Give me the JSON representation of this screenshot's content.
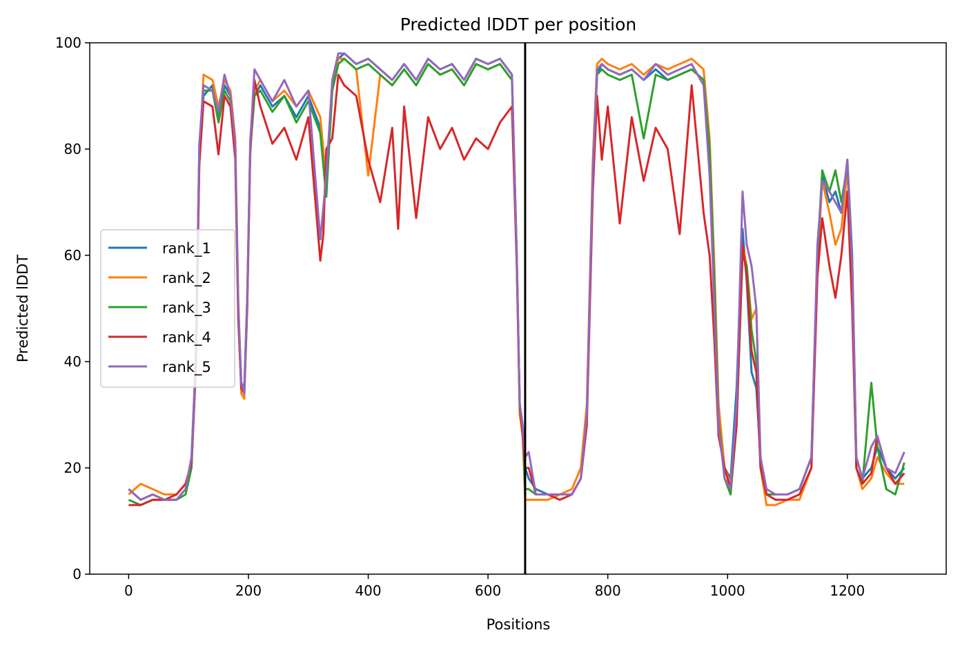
{
  "chart_data": {
    "type": "line",
    "title": "Predicted lDDT per position",
    "xlabel": "Positions",
    "ylabel": "Predicted lDDT",
    "xlim": [
      -65,
      1365
    ],
    "ylim": [
      0,
      100
    ],
    "xticks": [
      0,
      200,
      400,
      600,
      800,
      1000,
      1200
    ],
    "yticks": [
      0,
      20,
      40,
      60,
      80,
      100
    ],
    "grid": false,
    "legend_placement": "center-left",
    "vertical_line": {
      "x": 662,
      "color": "#000000"
    },
    "series": [
      {
        "name": "rank_1",
        "color": "#1f77b4",
        "x": [
          0,
          20,
          40,
          60,
          80,
          95,
          105,
          112,
          118,
          125,
          140,
          150,
          160,
          170,
          178,
          183,
          188,
          193,
          198,
          203,
          210,
          220,
          240,
          260,
          280,
          300,
          320,
          330,
          340,
          350,
          360,
          380,
          400,
          420,
          440,
          460,
          480,
          500,
          520,
          540,
          560,
          580,
          600,
          620,
          640,
          648,
          653,
          658,
          662,
          668,
          680,
          700,
          720,
          740,
          755,
          765,
          775,
          782,
          790,
          800,
          820,
          840,
          860,
          880,
          900,
          920,
          940,
          960,
          970,
          978,
          985,
          995,
          1005,
          1015,
          1025,
          1032,
          1040,
          1048,
          1055,
          1065,
          1080,
          1100,
          1120,
          1140,
          1150,
          1158,
          1170,
          1180,
          1190,
          1200,
          1208,
          1215,
          1225,
          1240,
          1250,
          1265,
          1280,
          1295
        ],
        "values": [
          16,
          14,
          15,
          14,
          14,
          16,
          22,
          40,
          80,
          90,
          92,
          86,
          92,
          90,
          80,
          50,
          36,
          35,
          52,
          80,
          90,
          92,
          88,
          90,
          86,
          90,
          84,
          72,
          92,
          97,
          98,
          96,
          97,
          95,
          93,
          96,
          93,
          97,
          95,
          96,
          93,
          97,
          96,
          97,
          94,
          60,
          32,
          28,
          20,
          18,
          16,
          15,
          15,
          15,
          18,
          30,
          75,
          94,
          96,
          95,
          94,
          95,
          93,
          95,
          93,
          94,
          95,
          93,
          80,
          55,
          30,
          20,
          18,
          35,
          65,
          55,
          38,
          35,
          22,
          15,
          15,
          15,
          16,
          22,
          60,
          75,
          70,
          72,
          68,
          78,
          60,
          22,
          18,
          20,
          24,
          20,
          18,
          20
        ]
      },
      {
        "name": "rank_2",
        "color": "#ff7f0e",
        "x": [
          0,
          20,
          40,
          60,
          80,
          95,
          105,
          112,
          118,
          125,
          140,
          150,
          160,
          170,
          178,
          183,
          188,
          193,
          198,
          203,
          210,
          220,
          240,
          260,
          280,
          300,
          320,
          330,
          340,
          350,
          360,
          380,
          400,
          420,
          440,
          460,
          480,
          500,
          520,
          540,
          560,
          580,
          600,
          620,
          640,
          648,
          653,
          658,
          662,
          668,
          680,
          700,
          720,
          740,
          755,
          765,
          775,
          782,
          790,
          800,
          820,
          840,
          860,
          880,
          900,
          920,
          940,
          960,
          970,
          978,
          985,
          995,
          1005,
          1015,
          1025,
          1032,
          1040,
          1048,
          1055,
          1065,
          1080,
          1100,
          1120,
          1140,
          1150,
          1158,
          1170,
          1180,
          1190,
          1200,
          1208,
          1215,
          1225,
          1240,
          1250,
          1265,
          1280,
          1295
        ],
        "values": [
          15,
          17,
          16,
          15,
          15,
          17,
          21,
          38,
          78,
          94,
          93,
          88,
          93,
          91,
          82,
          52,
          34,
          33,
          50,
          82,
          91,
          93,
          89,
          91,
          88,
          91,
          86,
          74,
          93,
          97,
          97,
          95,
          75,
          94,
          92,
          95,
          92,
          96,
          94,
          95,
          92,
          96,
          95,
          96,
          93,
          58,
          30,
          26,
          14,
          14,
          14,
          14,
          15,
          16,
          20,
          32,
          78,
          96,
          97,
          96,
          95,
          96,
          94,
          96,
          95,
          96,
          97,
          95,
          82,
          58,
          32,
          20,
          17,
          30,
          62,
          58,
          48,
          50,
          20,
          13,
          13,
          14,
          14,
          20,
          58,
          74,
          68,
          62,
          65,
          76,
          58,
          20,
          16,
          18,
          22,
          19,
          17,
          17
        ]
      },
      {
        "name": "rank_3",
        "color": "#2ca02c",
        "x": [
          0,
          20,
          40,
          60,
          80,
          95,
          105,
          112,
          118,
          125,
          140,
          150,
          160,
          170,
          178,
          183,
          188,
          193,
          198,
          203,
          210,
          220,
          240,
          260,
          280,
          300,
          320,
          330,
          340,
          350,
          360,
          380,
          400,
          420,
          440,
          460,
          480,
          500,
          520,
          540,
          560,
          580,
          600,
          620,
          640,
          648,
          653,
          658,
          662,
          668,
          680,
          700,
          720,
          740,
          755,
          765,
          775,
          782,
          790,
          800,
          820,
          840,
          860,
          880,
          900,
          920,
          940,
          960,
          970,
          978,
          985,
          995,
          1005,
          1015,
          1025,
          1032,
          1040,
          1048,
          1055,
          1065,
          1080,
          1100,
          1120,
          1140,
          1150,
          1158,
          1170,
          1180,
          1190,
          1200,
          1208,
          1215,
          1225,
          1240,
          1250,
          1265,
          1280,
          1295
        ],
        "values": [
          14,
          13,
          14,
          14,
          14,
          15,
          20,
          39,
          79,
          91,
          91,
          85,
          91,
          89,
          79,
          49,
          35,
          34,
          51,
          80,
          90,
          91,
          87,
          90,
          85,
          89,
          83,
          71,
          91,
          96,
          97,
          95,
          96,
          94,
          92,
          95,
          92,
          96,
          94,
          95,
          92,
          96,
          95,
          96,
          93,
          59,
          31,
          27,
          16,
          16,
          15,
          15,
          15,
          15,
          18,
          30,
          76,
          94,
          95,
          94,
          93,
          94,
          82,
          94,
          93,
          94,
          95,
          93,
          80,
          55,
          29,
          18,
          15,
          28,
          60,
          58,
          46,
          40,
          20,
          15,
          15,
          15,
          16,
          22,
          60,
          76,
          72,
          76,
          70,
          77,
          58,
          20,
          17,
          36,
          24,
          16,
          15,
          21
        ]
      },
      {
        "name": "rank_4",
        "color": "#d62728",
        "x": [
          0,
          20,
          40,
          60,
          80,
          95,
          105,
          112,
          118,
          125,
          140,
          150,
          160,
          170,
          178,
          183,
          188,
          193,
          198,
          203,
          210,
          220,
          240,
          260,
          280,
          300,
          320,
          325,
          330,
          340,
          350,
          360,
          380,
          400,
          420,
          440,
          450,
          460,
          480,
          500,
          520,
          540,
          560,
          580,
          600,
          620,
          640,
          648,
          653,
          658,
          662,
          668,
          680,
          700,
          720,
          740,
          755,
          765,
          775,
          782,
          790,
          800,
          820,
          840,
          860,
          880,
          900,
          920,
          940,
          960,
          970,
          978,
          985,
          995,
          1005,
          1015,
          1025,
          1032,
          1040,
          1048,
          1055,
          1065,
          1080,
          1100,
          1120,
          1140,
          1150,
          1158,
          1170,
          1180,
          1190,
          1200,
          1208,
          1215,
          1225,
          1240,
          1250,
          1265,
          1280,
          1295
        ],
        "values": [
          13,
          13,
          14,
          14,
          15,
          17,
          21,
          38,
          77,
          89,
          88,
          79,
          90,
          88,
          78,
          48,
          35,
          34,
          50,
          79,
          93,
          88,
          81,
          84,
          78,
          86,
          59,
          64,
          80,
          82,
          94,
          92,
          90,
          78,
          70,
          84,
          65,
          88,
          67,
          86,
          80,
          84,
          78,
          82,
          80,
          85,
          88,
          58,
          32,
          26,
          20,
          20,
          15,
          15,
          14,
          15,
          18,
          28,
          72,
          90,
          78,
          88,
          66,
          86,
          74,
          84,
          80,
          64,
          92,
          68,
          60,
          44,
          26,
          20,
          16,
          28,
          62,
          56,
          42,
          38,
          20,
          15,
          14,
          14,
          15,
          20,
          56,
          67,
          58,
          52,
          60,
          72,
          50,
          20,
          17,
          19,
          26,
          20,
          17,
          19
        ]
      },
      {
        "name": "rank_5",
        "color": "#9467bd",
        "x": [
          0,
          20,
          40,
          60,
          80,
          95,
          105,
          112,
          118,
          125,
          140,
          150,
          160,
          170,
          178,
          183,
          188,
          193,
          198,
          203,
          210,
          220,
          240,
          260,
          280,
          300,
          320,
          330,
          340,
          350,
          360,
          380,
          400,
          420,
          440,
          460,
          480,
          500,
          520,
          540,
          560,
          580,
          600,
          620,
          640,
          648,
          653,
          658,
          662,
          668,
          680,
          700,
          720,
          740,
          755,
          765,
          775,
          782,
          790,
          800,
          820,
          840,
          860,
          880,
          900,
          920,
          940,
          960,
          970,
          978,
          985,
          995,
          1005,
          1015,
          1025,
          1032,
          1040,
          1048,
          1055,
          1065,
          1080,
          1100,
          1120,
          1140,
          1150,
          1158,
          1170,
          1180,
          1190,
          1200,
          1208,
          1215,
          1225,
          1240,
          1250,
          1265,
          1280,
          1295
        ],
        "values": [
          16,
          14,
          15,
          14,
          14,
          16,
          22,
          40,
          81,
          92,
          91,
          87,
          94,
          90,
          81,
          51,
          36,
          34,
          52,
          81,
          95,
          93,
          89,
          93,
          88,
          91,
          63,
          75,
          93,
          98,
          98,
          96,
          97,
          95,
          93,
          96,
          93,
          97,
          95,
          96,
          93,
          97,
          96,
          97,
          94,
          60,
          32,
          28,
          22,
          23,
          15,
          15,
          15,
          15,
          18,
          30,
          76,
          95,
          96,
          95,
          94,
          95,
          93,
          96,
          94,
          95,
          96,
          92,
          75,
          50,
          28,
          18,
          16,
          32,
          72,
          62,
          58,
          50,
          22,
          16,
          15,
          15,
          16,
          22,
          62,
          74,
          72,
          70,
          68,
          78,
          58,
          22,
          18,
          24,
          26,
          20,
          19,
          23
        ]
      }
    ]
  }
}
